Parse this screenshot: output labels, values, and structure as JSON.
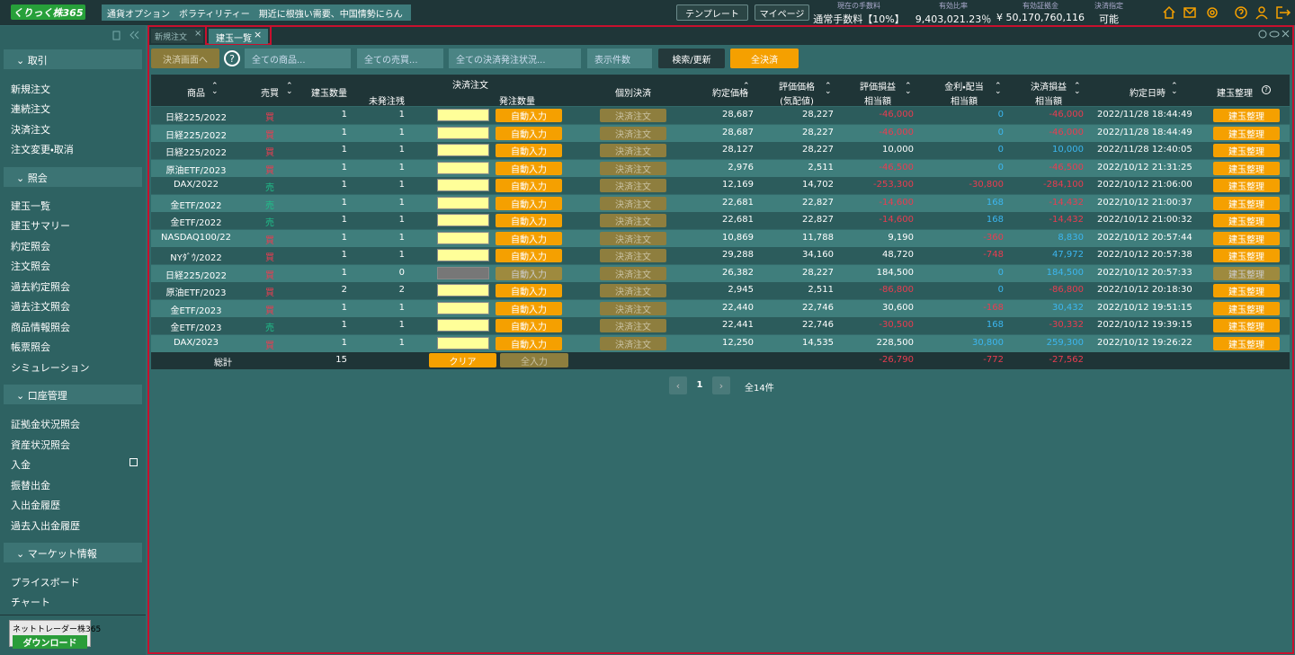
{
  "header": {
    "logo": "くりっく株365",
    "ticker": "通貨オプション　ボラティリティー　期近に根強い需要、中国情勢にらん",
    "buttons": [
      "テンプレート",
      "マイページ"
    ],
    "stats": [
      {
        "label": "現在の手数料",
        "value": "通常手数料【10%】"
      },
      {
        "label": "有効比率",
        "value": "9,403,021.23％"
      },
      {
        "label": "有効証拠金",
        "value": "¥ 50,170,760,116"
      },
      {
        "label": "決済指定",
        "value": "可能"
      }
    ]
  },
  "sidebar": {
    "sections": [
      {
        "title": "取引",
        "items": [
          "新規注文",
          "連続注文",
          "決済注文",
          "注文変更・取消"
        ]
      },
      {
        "title": "照会",
        "items": [
          "建玉一覧",
          "建玉サマリー",
          "約定照会",
          "注文照会",
          "過去約定照会",
          "過去注文照会",
          "商品情報照会",
          "帳票照会",
          "シミュレーション"
        ]
      },
      {
        "title": "口座管理",
        "items": [
          "証拠金状況照会",
          "資産状況照会",
          "入金",
          "振替出金",
          "入出金履歴",
          "過去入出金履歴"
        ]
      },
      {
        "title": "マーケット情報",
        "items": [
          "プライスボード",
          "チャート"
        ]
      }
    ],
    "download": {
      "title": "ネットトレーダー株365",
      "button": "ダウンロード"
    }
  },
  "tabs": [
    "新規注文",
    "建玉一覧"
  ],
  "toolbar": {
    "to_settle": "決済画面へ",
    "selects": [
      "全ての商品...",
      "全ての売買...",
      "全ての決済発注状況...",
      "表示件数"
    ],
    "search": "検索/更新",
    "settle_all": "全決済"
  },
  "table": {
    "headers": {
      "product": "商品",
      "side": "売買",
      "qty": "建玉数量",
      "unordered": "未発注残",
      "order": "決済注文",
      "order_qty": "発注数量",
      "individual": "個別決済",
      "price": "約定価格",
      "eval": [
        "評価価格",
        "(気配値)"
      ],
      "pl": [
        "評価損益",
        "相当額"
      ],
      "interest": [
        "金利・配当",
        "相当額"
      ],
      "settle": [
        "決済損益",
        "相当額"
      ],
      "datetime": "約定日時",
      "manage": "建玉整理"
    },
    "buttons": {
      "auto": "自動入力",
      "order": "決済注文",
      "manage": "建玉整理"
    },
    "rows": [
      [
        "日経225/2022",
        "買",
        "1",
        "1",
        "28,687",
        "28,227",
        "-46,000",
        "0",
        "-46,000",
        "2022/11/28 18:44:49"
      ],
      [
        "日経225/2022",
        "買",
        "1",
        "1",
        "28,687",
        "28,227",
        "-46,000",
        "0",
        "-46,000",
        "2022/11/28 18:44:49"
      ],
      [
        "日経225/2022",
        "買",
        "1",
        "1",
        "28,127",
        "28,227",
        "10,000",
        "0",
        "10,000",
        "2022/11/28 12:40:05"
      ],
      [
        "原油ETF/2023",
        "買",
        "1",
        "1",
        "2,976",
        "2,511",
        "-46,500",
        "0",
        "-46,500",
        "2022/10/12 21:31:25"
      ],
      [
        "DAX/2022",
        "売",
        "1",
        "1",
        "12,169",
        "14,702",
        "-253,300",
        "-30,800",
        "-284,100",
        "2022/10/12 21:06:00"
      ],
      [
        "金ETF/2022",
        "売",
        "1",
        "1",
        "22,681",
        "22,827",
        "-14,600",
        "168",
        "-14,432",
        "2022/10/12 21:00:37"
      ],
      [
        "金ETF/2022",
        "売",
        "1",
        "1",
        "22,681",
        "22,827",
        "-14,600",
        "168",
        "-14,432",
        "2022/10/12 21:00:32"
      ],
      [
        "NASDAQ100/22",
        "買",
        "1",
        "1",
        "10,869",
        "11,788",
        "9,190",
        "-360",
        "8,830",
        "2022/10/12 20:57:44"
      ],
      [
        "NYﾀﾞｳ/2022",
        "買",
        "1",
        "1",
        "29,288",
        "34,160",
        "48,720",
        "-748",
        "47,972",
        "2022/10/12 20:57:38"
      ],
      [
        "日経225/2022",
        "買",
        "1",
        "0",
        "26,382",
        "28,227",
        "184,500",
        "0",
        "184,500",
        "2022/10/12 20:57:33"
      ],
      [
        "原油ETF/2023",
        "買",
        "2",
        "2",
        "2,945",
        "2,511",
        "-86,800",
        "0",
        "-86,800",
        "2022/10/12 20:18:30"
      ],
      [
        "金ETF/2023",
        "買",
        "1",
        "1",
        "22,440",
        "22,746",
        "30,600",
        "-168",
        "30,432",
        "2022/10/12 19:51:15"
      ],
      [
        "金ETF/2023",
        "売",
        "1",
        "1",
        "22,441",
        "22,746",
        "-30,500",
        "168",
        "-30,332",
        "2022/10/12 19:39:15"
      ],
      [
        "DAX/2023",
        "買",
        "1",
        "1",
        "12,250",
        "14,535",
        "228,500",
        "30,800",
        "259,300",
        "2022/10/12 19:26:22"
      ]
    ],
    "total": {
      "label": "総計",
      "qty": "15",
      "clear": "クリア",
      "fill_all": "全入力",
      "pl": "-26,790",
      "interest": "-772",
      "settle": "-27,562"
    }
  },
  "pagination": {
    "page": "1",
    "count": "全14件"
  }
}
